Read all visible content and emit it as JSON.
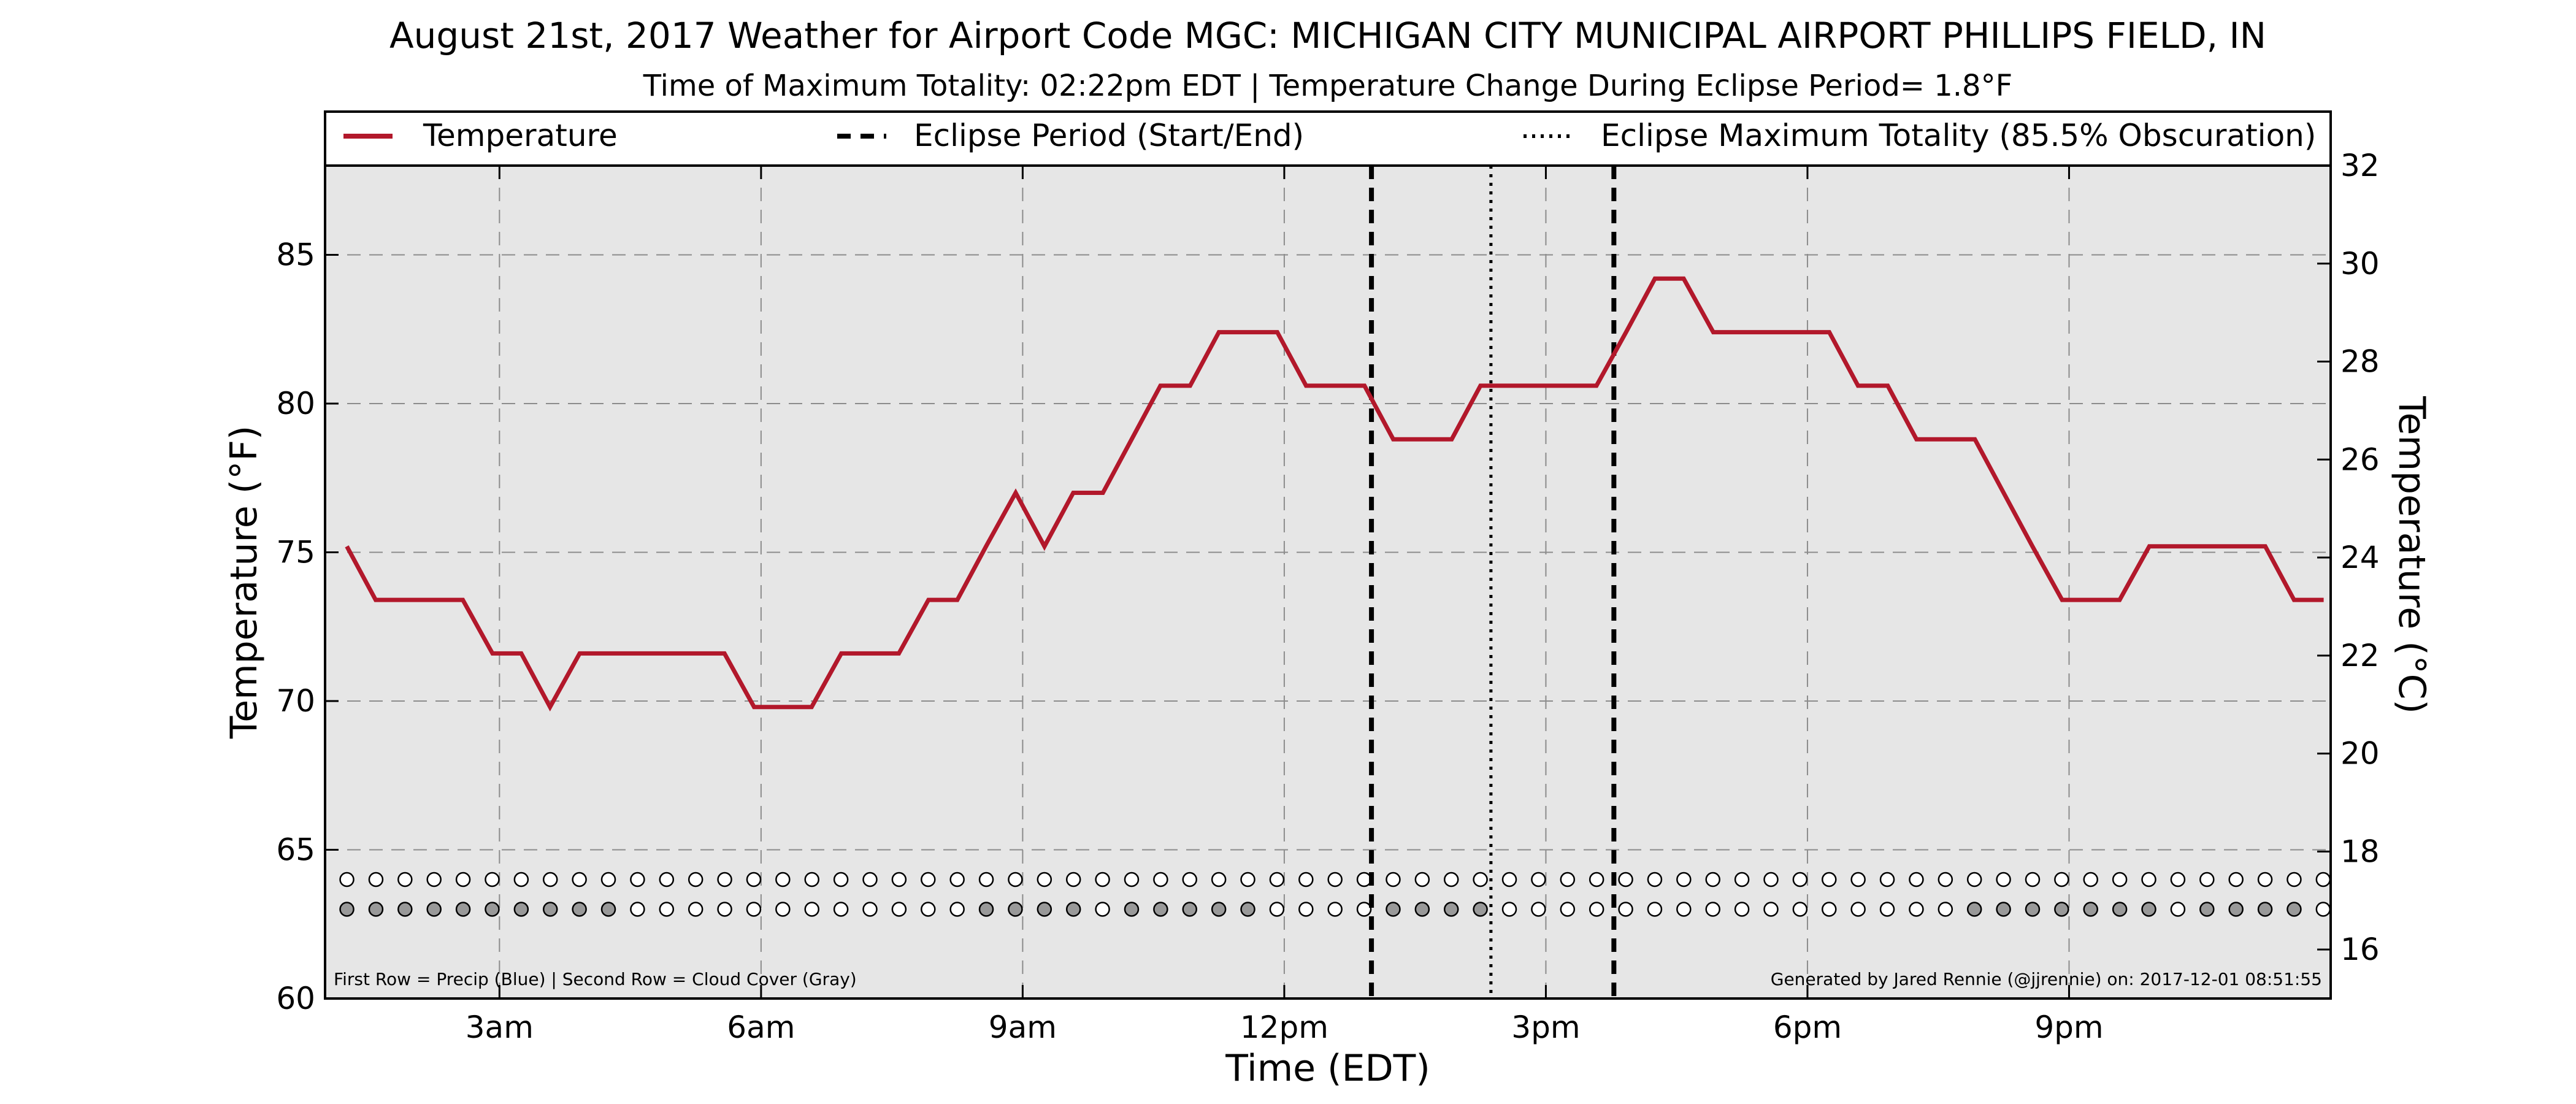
{
  "chart_data": {
    "type": "line",
    "title": "August 21st, 2017 Weather for Airport Code MGC: MICHIGAN CITY MUNICIPAL AIRPORT PHILLIPS FIELD, IN",
    "subtitle": "Time of Maximum Totality: 02:22pm EDT | Temperature Change During Eclipse Period= 1.8°F",
    "xlabel": "Time (EDT)",
    "ylabel": "Temperature (°F)",
    "ylabel_right": "Temperature (°C)",
    "x_unit": "hours after midnight EDT",
    "xlim": [
      1.0,
      24.0
    ],
    "ylim": [
      60,
      88
    ],
    "ylim_right": [
      15.0,
      32.0
    ],
    "x_ticks": [
      {
        "x": 3,
        "label": "3am"
      },
      {
        "x": 6,
        "label": "6am"
      },
      {
        "x": 9,
        "label": "9am"
      },
      {
        "x": 12,
        "label": "12pm"
      },
      {
        "x": 15,
        "label": "3pm"
      },
      {
        "x": 18,
        "label": "6pm"
      },
      {
        "x": 21,
        "label": "9pm"
      }
    ],
    "y_ticks": [
      60,
      65,
      70,
      75,
      80,
      85
    ],
    "y_ticks_right": [
      16,
      18,
      20,
      22,
      24,
      26,
      28,
      30,
      32
    ],
    "grid": true,
    "legend_position": "top",
    "legend": [
      {
        "label": "Temperature",
        "style": "solid"
      },
      {
        "label": "Eclipse Period (Start/End)",
        "style": "dashed"
      },
      {
        "label": "Eclipse Maximum Totality (85.5% Obscuration)",
        "style": "dotted"
      }
    ],
    "series": [
      {
        "name": "Temperature",
        "color": "#b2182b",
        "x": [
          1.25,
          1.58,
          1.92,
          2.25,
          2.58,
          2.92,
          3.25,
          3.58,
          3.92,
          4.25,
          4.58,
          4.92,
          5.25,
          5.58,
          5.92,
          6.25,
          6.58,
          6.92,
          7.25,
          7.58,
          7.92,
          8.25,
          8.58,
          8.92,
          9.25,
          9.58,
          9.92,
          10.25,
          10.58,
          10.92,
          11.25,
          11.58,
          11.92,
          12.25,
          12.58,
          12.92,
          13.25,
          13.58,
          13.92,
          14.25,
          14.58,
          14.92,
          15.25,
          15.58,
          15.92,
          16.25,
          16.58,
          16.92,
          17.25,
          17.58,
          17.92,
          18.25,
          18.58,
          18.92,
          19.25,
          19.58,
          19.92,
          20.25,
          20.58,
          20.92,
          21.25,
          21.58,
          21.92,
          22.25,
          22.58,
          22.92,
          23.25,
          23.58,
          23.92
        ],
        "values": [
          75.2,
          73.4,
          73.4,
          73.4,
          73.4,
          71.6,
          71.6,
          69.8,
          71.6,
          71.6,
          71.6,
          71.6,
          71.6,
          71.6,
          69.8,
          69.8,
          69.8,
          71.6,
          71.6,
          71.6,
          73.4,
          73.4,
          75.2,
          77.0,
          75.2,
          77.0,
          77.0,
          78.8,
          80.6,
          80.6,
          82.4,
          82.4,
          82.4,
          80.6,
          80.6,
          80.6,
          78.8,
          78.8,
          78.8,
          80.6,
          80.6,
          80.6,
          80.6,
          80.6,
          82.4,
          84.2,
          84.2,
          82.4,
          82.4,
          82.4,
          82.4,
          82.4,
          80.6,
          80.6,
          78.8,
          78.8,
          78.8,
          77.0,
          75.2,
          73.4,
          73.4,
          73.4,
          75.2,
          75.2,
          75.2,
          75.2,
          75.2,
          73.4,
          73.4
        ]
      }
    ],
    "eclipse_period": {
      "start": 13.0,
      "end": 15.78
    },
    "eclipse_max_totality": 14.37,
    "indicator_rows": {
      "x_start": 1.25,
      "x_step": 0.3333,
      "precip_y": 64.0,
      "cloud_y": 63.0,
      "precip_fill": "#ffffff",
      "cloud_filled_color": "#999999",
      "cloud_clear_color": "#ffffff",
      "precip": [
        0,
        0,
        0,
        0,
        0,
        0,
        0,
        0,
        0,
        0,
        0,
        0,
        0,
        0,
        0,
        0,
        0,
        0,
        0,
        0,
        0,
        0,
        0,
        0,
        0,
        0,
        0,
        0,
        0,
        0,
        0,
        0,
        0,
        0,
        0,
        0,
        0,
        0,
        0,
        0,
        0,
        0,
        0,
        0,
        0,
        0,
        0,
        0,
        0,
        0,
        0,
        0,
        0,
        0,
        0,
        0,
        0,
        0,
        0,
        0,
        0,
        0,
        0,
        0,
        0,
        0,
        0,
        0,
        0,
        0,
        0
      ],
      "cloud": [
        1,
        1,
        1,
        1,
        1,
        1,
        1,
        1,
        1,
        1,
        0,
        0,
        0,
        0,
        0,
        0,
        0,
        0,
        0,
        0,
        0,
        0,
        1,
        1,
        1,
        1,
        0,
        1,
        1,
        1,
        1,
        1,
        0,
        0,
        0,
        0,
        1,
        1,
        1,
        1,
        0,
        0,
        0,
        0,
        0,
        0,
        0,
        0,
        0,
        0,
        0,
        0,
        0,
        0,
        0,
        0,
        1,
        1,
        1,
        1,
        1,
        1,
        1,
        0,
        1,
        1,
        1,
        1,
        0,
        0,
        0
      ]
    },
    "footnote_left": "First Row = Precip (Blue) | Second Row = Cloud Cover (Gray)",
    "footnote_right": "Generated by Jared Rennie (@jjrennie) on: 2017-12-01 08:51:55"
  }
}
